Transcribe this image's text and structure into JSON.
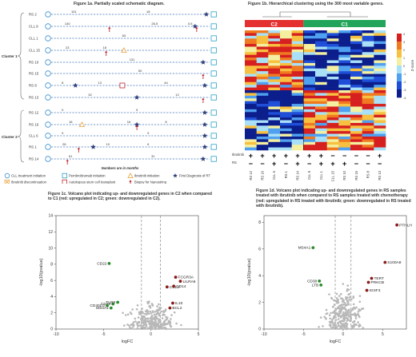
{
  "fig1a": {
    "title": "Figure 1a. Partially scaled schematic diagram.",
    "cluster1_label": "Cluster 1",
    "cluster2_label": "Cluster 2",
    "months_note": "Numbers are in months",
    "rows": [
      {
        "label": "RS 2",
        "nums": [
          {
            "t": "101",
            "p": 0.16
          },
          {
            "t": "18",
            "p": 0.62
          }
        ]
      },
      {
        "label": "CLL 9",
        "nums": [
          {
            "t": "140",
            "p": 0.12
          },
          {
            "t": "26.5",
            "p": 0.66
          },
          {
            "t": "0.5",
            "p": 0.88
          }
        ]
      },
      {
        "label": "CLL 1",
        "nums": [
          {
            "t": "63",
            "p": 0.47
          }
        ]
      },
      {
        "label": "CLL 15",
        "nums": [
          {
            "t": "23",
            "p": 0.12
          },
          {
            "t": "18",
            "p": 0.35
          }
        ]
      },
      {
        "label": "RS 10",
        "nums": [
          {
            "t": "131",
            "p": 0.52
          }
        ]
      },
      {
        "label": "RS 15",
        "nums": [
          {
            "t": "50",
            "p": 0.57
          }
        ]
      },
      {
        "label": "RS 8",
        "nums": [
          {
            "t": "8",
            "p": 0.09
          },
          {
            "t": "13",
            "p": 0.32
          },
          {
            "t": "44",
            "p": 0.73
          }
        ]
      },
      {
        "label": "RS 13",
        "nums": [
          {
            "t": "32",
            "p": 0.26
          },
          {
            "t": "12",
            "p": 0.8
          }
        ]
      },
      {
        "label": "RS 12",
        "nums": [
          {
            "t": "0",
            "p": 0.09
          },
          {
            "t": "9",
            "p": 0.55
          }
        ]
      },
      {
        "label": "RS 16",
        "nums": [
          {
            "t": "18",
            "p": 0.14
          },
          {
            "t": "16",
            "p": 0.5
          },
          {
            "t": "8",
            "p": 0.73
          }
        ]
      },
      {
        "label": "CLL 6",
        "nums": [
          {
            "t": "9",
            "p": 0.09
          },
          {
            "t": "9",
            "p": 0.62
          }
        ]
      },
      {
        "label": "RS 1",
        "nums": [
          {
            "t": "28",
            "p": 0.1
          },
          {
            "t": "10",
            "p": 0.37
          },
          {
            "t": "6",
            "p": 0.62
          }
        ]
      },
      {
        "label": "RS 14",
        "nums": [
          {
            "t": "61",
            "p": 0.14
          },
          {
            "t": "31",
            "p": 0.65
          }
        ]
      }
    ],
    "legend": [
      {
        "icon": "circle-blue",
        "label": "CLL treatment initiation"
      },
      {
        "icon": "square-teal",
        "label": "Pembrolizumab initiation"
      },
      {
        "icon": "triangle-orange",
        "label": "Ibrutinib initiation"
      },
      {
        "icon": "star-navy",
        "label": "First Diagnosis of RT"
      },
      {
        "icon": "x-orange",
        "label": "Ibrutinib discontinuation"
      },
      {
        "icon": "square-red",
        "label": "Autologous stem cell transplant"
      },
      {
        "icon": "arrow-red",
        "label": "Biopsy for Nanostring"
      }
    ]
  },
  "fig1b": {
    "title": "Figure 1b. Hierarchical clustering using the 300 most variable genes.",
    "group_c2": "C2",
    "group_c1": "C1",
    "colorbar_label": "Z-score",
    "colorbar_ticks": [
      "4",
      "3",
      "2",
      "1",
      "0",
      "-1",
      "-2",
      "-3",
      "-4"
    ],
    "row_labels": [
      "Ibrutinib",
      "RS"
    ],
    "columns": [
      "RS 12",
      "RS 16",
      "CLL 6",
      "RS 1",
      "RS 14",
      "CLL 9",
      "CLL 1",
      "CLL 15",
      "RS 10",
      "RS 15",
      "RS 8",
      "RS 13"
    ],
    "ibrutinib_row": [
      "+",
      "+",
      "+",
      "+",
      "+",
      "+",
      "+",
      "−",
      "−",
      "−",
      "−",
      "+"
    ],
    "rs_row": [
      "−",
      "−",
      "+",
      "−",
      "+",
      "−",
      "+",
      "+",
      "+",
      "−",
      "−",
      "−"
    ]
  },
  "fig1c": {
    "title": "Figure 1c. Volcano plot indicating up- and downregulated genes in C2 when compared to C1 (red: upregulated in C2; green: downregulated in C2).",
    "chart_data": {
      "type": "scatter",
      "xlabel": "logFC",
      "ylabel": "-log10(pvalue)",
      "xlim": [
        -10,
        5
      ],
      "ylim": [
        0,
        14
      ],
      "xticks": [
        -10,
        -5,
        0,
        5
      ],
      "yticks": [
        0,
        2,
        4,
        6,
        8,
        10,
        12,
        14
      ],
      "vlines": [
        -1,
        1
      ],
      "labeled_points": [
        {
          "gene": "CD22",
          "x": -4.4,
          "y": 8.1,
          "color": "green"
        },
        {
          "gene": "FCGR3A",
          "x": 2.6,
          "y": 6.4,
          "color": "red"
        },
        {
          "gene": "LILRA6",
          "x": 3.1,
          "y": 5.9,
          "color": "red"
        },
        {
          "gene": "CCL3",
          "x": 1.7,
          "y": 5.2,
          "color": "red"
        },
        {
          "gene": "CD14",
          "x": 2.4,
          "y": 5.3,
          "color": "red"
        },
        {
          "gene": "IL10",
          "x": 2.3,
          "y": 3.2,
          "color": "red"
        },
        {
          "gene": "BCL2",
          "x": 2.0,
          "y": 2.6,
          "color": "red"
        },
        {
          "gene": "CD40LG",
          "x": -4.6,
          "y": 2.9,
          "color": "green"
        },
        {
          "gene": "CD79",
          "x": -4.0,
          "y": 3.1,
          "color": "green"
        },
        {
          "gene": "TLR8",
          "x": -3.5,
          "y": 3.3,
          "color": "green"
        },
        {
          "gene": "MS4A1",
          "x": -4.2,
          "y": 2.6,
          "color": "green"
        }
      ]
    }
  },
  "fig1d": {
    "title": "Figure 1d. Volcano plot indicating up- and downregulated genes in RS samples treated with ibrutinib when compared to RS samples treated with chemotherapy (red: upregulated in RS treated with ibrutinib; green: downregulated in RS treated with ibrutinib).",
    "chart_data": {
      "type": "scatter",
      "xlabel": "logFC",
      "ylabel": "-log10(pvalue)",
      "xlim": [
        -10,
        8
      ],
      "ylim": [
        0,
        8.5
      ],
      "xticks": [
        -10,
        -5,
        0,
        5
      ],
      "yticks": [
        0,
        2,
        4,
        6,
        8
      ],
      "vlines": [
        -1,
        1
      ],
      "labeled_points": [
        {
          "gene": "PTHLH",
          "x": 6.8,
          "y": 7.8,
          "color": "red"
        },
        {
          "gene": "MS4A1",
          "x": -3.8,
          "y": 6.1,
          "color": "green"
        },
        {
          "gene": "S100A8",
          "x": 5.3,
          "y": 5.0,
          "color": "red"
        },
        {
          "gene": "TERT",
          "x": 3.6,
          "y": 3.8,
          "color": "red"
        },
        {
          "gene": "PRKCB",
          "x": 3.2,
          "y": 3.5,
          "color": "red"
        },
        {
          "gene": "IGSF3",
          "x": 3.0,
          "y": 2.9,
          "color": "red"
        },
        {
          "gene": "CD38",
          "x": -3.0,
          "y": 3.6,
          "color": "green"
        },
        {
          "gene": "LTB",
          "x": -2.8,
          "y": 3.3,
          "color": "green"
        }
      ]
    }
  }
}
